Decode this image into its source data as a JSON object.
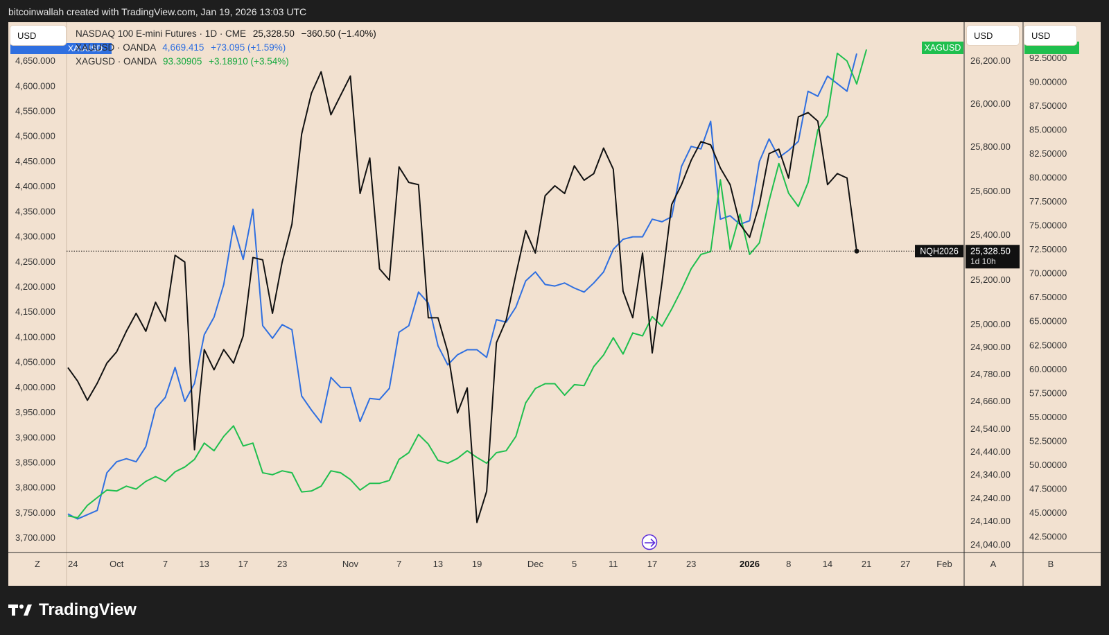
{
  "header": {
    "text": "bitcoinwallah created with TradingView.com, Jan 19, 2026 13:03 UTC"
  },
  "currency_buttons": {
    "left": "USD",
    "right1": "USD",
    "right2": "USD"
  },
  "legend": {
    "row1": {
      "symbol": "NASDAQ 100 E-mini Futures · 1D · CME",
      "value": "25,328.50",
      "change": "−360.50 (−1.40%)"
    },
    "row2": {
      "symbol": "XAUUSD · OANDA",
      "value": "4,669.415",
      "change": "+73.095 (+1.59%)"
    },
    "row3": {
      "symbol": "XAGUSD · OANDA",
      "value": "93.30905",
      "change": "+3.18910 (+3.54%)"
    }
  },
  "badges": {
    "xau_left": "XAUUSD",
    "xag_right": "XAGUSD",
    "nq_name": "NQH2026",
    "nq_price": "25,328.50",
    "nq_countdown": "1d 10h"
  },
  "axis_corner_labels": {
    "left": "Z",
    "a": "A",
    "b": "B"
  },
  "brand": {
    "name": "TradingView"
  },
  "colors": {
    "background": "#f2e1d0",
    "nasdaq": "#111111",
    "xau": "#2f6fe0",
    "xag": "#1fbf4e"
  },
  "chart_data": {
    "type": "line",
    "x_ticks": [
      {
        "label": "24",
        "index": 0
      },
      {
        "label": "Oct",
        "index": 5
      },
      {
        "label": "7",
        "index": 10
      },
      {
        "label": "13",
        "index": 14
      },
      {
        "label": "17",
        "index": 18
      },
      {
        "label": "23",
        "index": 22
      },
      {
        "label": "Nov",
        "index": 29
      },
      {
        "label": "7",
        "index": 34
      },
      {
        "label": "13",
        "index": 38
      },
      {
        "label": "19",
        "index": 42
      },
      {
        "label": "Dec",
        "index": 48
      },
      {
        "label": "5",
        "index": 52
      },
      {
        "label": "11",
        "index": 56
      },
      {
        "label": "17",
        "index": 60
      },
      {
        "label": "23",
        "index": 64
      },
      {
        "label": "2026",
        "index": 70
      },
      {
        "label": "8",
        "index": 74
      },
      {
        "label": "14",
        "index": 78
      },
      {
        "label": "21",
        "index": 82
      },
      {
        "label": "27",
        "index": 86
      },
      {
        "label": "Feb",
        "index": 90
      }
    ],
    "left_axis": {
      "ticks": [
        "4,650.000",
        "4,600.000",
        "4,550.000",
        "4,500.000",
        "4,450.000",
        "4,400.000",
        "4,350.000",
        "4,300.000",
        "4,250.000",
        "4,200.000",
        "4,150.000",
        "4,100.000",
        "4,050.000",
        "4,000.000",
        "3,950.000",
        "3,900.000",
        "3,850.000",
        "3,800.000",
        "3,750.000",
        "3,700.000"
      ],
      "ylim": [
        3685,
        4675
      ]
    },
    "right_axis_nq": {
      "ticks": [
        "26,200.00",
        "26,000.00",
        "25,800.00",
        "25,600.00",
        "25,400.00",
        "25,200.00",
        "25,000.00",
        "24,900.00",
        "24,780.00",
        "24,660.00",
        "24,540.00",
        "24,440.00",
        "24,340.00",
        "24,240.00",
        "24,140.00",
        "24,040.00"
      ]
    },
    "right_axis_xag": {
      "ticks": [
        "92.50000",
        "90.00000",
        "87.50000",
        "85.00000",
        "82.50000",
        "80.00000",
        "77.50000",
        "75.00000",
        "72.50000",
        "70.00000",
        "67.50000",
        "65.00000",
        "62.50000",
        "60.00000",
        "57.50000",
        "55.00000",
        "52.50000",
        "50.00000",
        "47.50000",
        "45.00000",
        "42.50000"
      ],
      "ylim": [
        41.6,
        93.5
      ]
    },
    "nq_scale": [
      [
        26200,
        88
      ],
      [
        26000,
        150
      ],
      [
        25800,
        212
      ],
      [
        25600,
        276
      ],
      [
        25400,
        339
      ],
      [
        25200,
        404
      ],
      [
        25000,
        468
      ],
      [
        24900,
        501
      ],
      [
        24780,
        540
      ],
      [
        24660,
        579
      ],
      [
        24540,
        619
      ],
      [
        24440,
        652
      ],
      [
        24340,
        685
      ],
      [
        24240,
        719
      ],
      [
        24140,
        752
      ],
      [
        24040,
        786
      ]
    ],
    "last_price_nq": 25328.5,
    "series": [
      {
        "name": "XAUUSD",
        "values": [
          [
            0,
            3748
          ],
          [
            1,
            3738
          ],
          [
            3,
            3755
          ],
          [
            4,
            3830
          ],
          [
            5,
            3852
          ],
          [
            6,
            3858
          ],
          [
            7,
            3852
          ],
          [
            8,
            3882
          ],
          [
            9,
            3958
          ],
          [
            10,
            3980
          ],
          [
            11,
            4040
          ],
          [
            12,
            3972
          ],
          [
            13,
            4008
          ],
          [
            14,
            4105
          ],
          [
            15,
            4140
          ],
          [
            16,
            4205
          ],
          [
            17,
            4322
          ],
          [
            18,
            4255
          ],
          [
            19,
            4355
          ],
          [
            20,
            4123
          ],
          [
            21,
            4098
          ],
          [
            22,
            4125
          ],
          [
            23,
            4115
          ],
          [
            24,
            3983
          ],
          [
            25,
            3955
          ],
          [
            26,
            3930
          ],
          [
            27,
            4020
          ],
          [
            28,
            4000
          ],
          [
            29,
            4000
          ],
          [
            30,
            3932
          ],
          [
            31,
            3978
          ],
          [
            32,
            3976
          ],
          [
            33,
            3998
          ],
          [
            34,
            4110
          ],
          [
            35,
            4123
          ],
          [
            36,
            4190
          ],
          [
            37,
            4168
          ],
          [
            38,
            4083
          ],
          [
            39,
            4045
          ],
          [
            40,
            4065
          ],
          [
            41,
            4075
          ],
          [
            42,
            4075
          ],
          [
            43,
            4060
          ],
          [
            44,
            4135
          ],
          [
            45,
            4130
          ],
          [
            46,
            4160
          ],
          [
            47,
            4212
          ],
          [
            48,
            4230
          ],
          [
            49,
            4205
          ],
          [
            50,
            4202
          ],
          [
            51,
            4208
          ],
          [
            52,
            4198
          ],
          [
            53,
            4190
          ],
          [
            54,
            4208
          ],
          [
            55,
            4230
          ],
          [
            56,
            4275
          ],
          [
            57,
            4295
          ],
          [
            58,
            4300
          ],
          [
            59,
            4300
          ],
          [
            60,
            4335
          ],
          [
            61,
            4330
          ],
          [
            62,
            4340
          ],
          [
            63,
            4440
          ],
          [
            64,
            4480
          ],
          [
            65,
            4475
          ],
          [
            66,
            4530
          ],
          [
            67,
            4335
          ],
          [
            68,
            4342
          ],
          [
            69,
            4325
          ],
          [
            70,
            4332
          ],
          [
            71,
            4450
          ],
          [
            72,
            4495
          ],
          [
            73,
            4458
          ],
          [
            74,
            4472
          ],
          [
            75,
            4490
          ],
          [
            76,
            4590
          ],
          [
            77,
            4580
          ],
          [
            78,
            4620
          ],
          [
            79,
            4605
          ],
          [
            80,
            4590
          ],
          [
            81,
            4665
          ]
        ]
      },
      {
        "name": "XAGUSD",
        "values": [
          [
            0,
            44.7
          ],
          [
            1,
            44.5
          ],
          [
            2,
            45.8
          ],
          [
            3,
            46.6
          ],
          [
            4,
            47.4
          ],
          [
            5,
            47.3
          ],
          [
            6,
            47.8
          ],
          [
            7,
            47.5
          ],
          [
            8,
            48.3
          ],
          [
            9,
            48.8
          ],
          [
            10,
            48.3
          ],
          [
            11,
            49.3
          ],
          [
            12,
            49.8
          ],
          [
            13,
            50.6
          ],
          [
            14,
            52.3
          ],
          [
            15,
            51.5
          ],
          [
            16,
            53.0
          ],
          [
            17,
            54.1
          ],
          [
            18,
            52.0
          ],
          [
            19,
            52.3
          ],
          [
            20,
            49.2
          ],
          [
            21,
            49.0
          ],
          [
            22,
            49.4
          ],
          [
            23,
            49.2
          ],
          [
            24,
            47.2
          ],
          [
            25,
            47.3
          ],
          [
            26,
            47.8
          ],
          [
            27,
            49.4
          ],
          [
            28,
            49.2
          ],
          [
            29,
            48.5
          ],
          [
            30,
            47.4
          ],
          [
            31,
            48.1
          ],
          [
            32,
            48.1
          ],
          [
            33,
            48.4
          ],
          [
            34,
            50.6
          ],
          [
            35,
            51.3
          ],
          [
            36,
            53.2
          ],
          [
            37,
            52.2
          ],
          [
            38,
            50.5
          ],
          [
            39,
            50.2
          ],
          [
            40,
            50.7
          ],
          [
            41,
            51.5
          ],
          [
            42,
            50.8
          ],
          [
            43,
            50.2
          ],
          [
            44,
            51.3
          ],
          [
            45,
            51.5
          ],
          [
            46,
            53.0
          ],
          [
            47,
            56.5
          ],
          [
            48,
            58.0
          ],
          [
            49,
            58.5
          ],
          [
            50,
            58.5
          ],
          [
            51,
            57.3
          ],
          [
            52,
            58.4
          ],
          [
            53,
            58.3
          ],
          [
            54,
            60.3
          ],
          [
            55,
            61.5
          ],
          [
            56,
            63.3
          ],
          [
            57,
            61.6
          ],
          [
            58,
            63.8
          ],
          [
            59,
            63.5
          ],
          [
            60,
            65.5
          ],
          [
            61,
            64.5
          ],
          [
            62,
            66.3
          ],
          [
            63,
            68.3
          ],
          [
            64,
            70.5
          ],
          [
            65,
            72.0
          ],
          [
            66,
            72.3
          ],
          [
            67,
            79.8
          ],
          [
            68,
            72.5
          ],
          [
            69,
            76.2
          ],
          [
            70,
            72.0
          ],
          [
            71,
            73.2
          ],
          [
            72,
            77.6
          ],
          [
            73,
            81.5
          ],
          [
            74,
            78.4
          ],
          [
            75,
            77.0
          ],
          [
            76,
            79.5
          ],
          [
            77,
            85.0
          ],
          [
            78,
            86.5
          ],
          [
            79,
            93.0
          ],
          [
            80,
            92.2
          ],
          [
            81,
            89.8
          ],
          [
            82,
            93.4
          ]
        ]
      },
      {
        "name": "NQH2026",
        "values": [
          [
            0,
            24810
          ],
          [
            1,
            24750
          ],
          [
            2,
            24665
          ],
          [
            3,
            24740
          ],
          [
            4,
            24830
          ],
          [
            5,
            24880
          ],
          [
            6,
            24970
          ],
          [
            7,
            25050
          ],
          [
            8,
            24970
          ],
          [
            9,
            25100
          ],
          [
            10,
            25015
          ],
          [
            11,
            25310
          ],
          [
            12,
            25280
          ],
          [
            13,
            24450
          ],
          [
            14,
            24890
          ],
          [
            15,
            24800
          ],
          [
            16,
            24890
          ],
          [
            17,
            24830
          ],
          [
            18,
            24950
          ],
          [
            19,
            25300
          ],
          [
            20,
            25290
          ],
          [
            21,
            25050
          ],
          [
            22,
            25280
          ],
          [
            23,
            25450
          ],
          [
            24,
            25860
          ],
          [
            25,
            26050
          ],
          [
            26,
            26150
          ],
          [
            27,
            25950
          ],
          [
            28,
            26040
          ],
          [
            29,
            26130
          ],
          [
            30,
            25590
          ],
          [
            31,
            25750
          ],
          [
            32,
            25250
          ],
          [
            33,
            25200
          ],
          [
            34,
            25710
          ],
          [
            35,
            25640
          ],
          [
            36,
            25630
          ],
          [
            37,
            25030
          ],
          [
            38,
            25030
          ],
          [
            39,
            24880
          ],
          [
            40,
            24610
          ],
          [
            41,
            24720
          ],
          [
            42,
            24135
          ],
          [
            43,
            24270
          ],
          [
            44,
            24920
          ],
          [
            45,
            25020
          ],
          [
            46,
            25225
          ],
          [
            47,
            25420
          ],
          [
            48,
            25320
          ],
          [
            49,
            25580
          ],
          [
            50,
            25625
          ],
          [
            51,
            25590
          ],
          [
            52,
            25715
          ],
          [
            53,
            25650
          ],
          [
            54,
            25680
          ],
          [
            55,
            25795
          ],
          [
            56,
            25700
          ],
          [
            57,
            25150
          ],
          [
            58,
            25030
          ],
          [
            59,
            25320
          ],
          [
            60,
            24875
          ],
          [
            61,
            25190
          ],
          [
            62,
            25540
          ],
          [
            63,
            25630
          ],
          [
            64,
            25740
          ],
          [
            65,
            25825
          ],
          [
            66,
            25810
          ],
          [
            67,
            25705
          ],
          [
            68,
            25630
          ],
          [
            69,
            25450
          ],
          [
            70,
            25390
          ],
          [
            71,
            25540
          ],
          [
            72,
            25770
          ],
          [
            73,
            25790
          ],
          [
            74,
            25660
          ],
          [
            75,
            25940
          ],
          [
            76,
            25960
          ],
          [
            77,
            25920
          ],
          [
            78,
            25630
          ],
          [
            79,
            25680
          ],
          [
            80,
            25660
          ],
          [
            81,
            25328.5
          ]
        ]
      }
    ]
  }
}
